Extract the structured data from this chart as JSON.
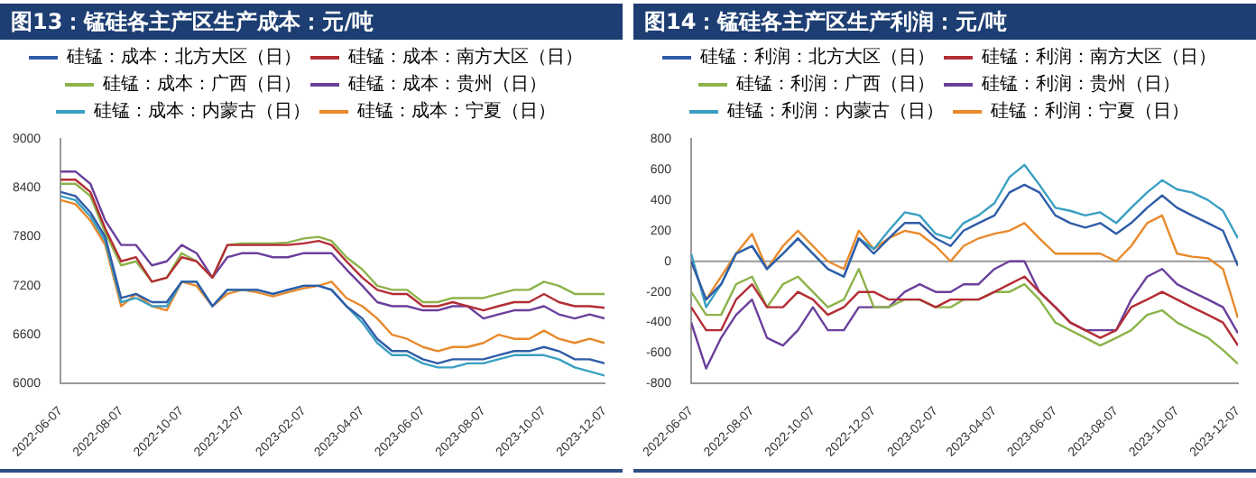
{
  "chart_data": [
    {
      "type": "line",
      "title": "图13：锰硅各主产区生产成本：元/吨",
      "x": [
        "2022-06-07",
        "2022-06-22",
        "2022-07-07",
        "2022-07-22",
        "2022-08-07",
        "2022-08-22",
        "2022-09-07",
        "2022-09-22",
        "2022-10-07",
        "2022-10-22",
        "2022-11-07",
        "2022-11-22",
        "2022-12-07",
        "2022-12-22",
        "2023-01-07",
        "2023-01-22",
        "2023-02-07",
        "2023-02-22",
        "2023-03-07",
        "2023-03-22",
        "2023-04-07",
        "2023-04-22",
        "2023-05-07",
        "2023-05-22",
        "2023-06-07",
        "2023-06-22",
        "2023-07-07",
        "2023-07-22",
        "2023-08-07",
        "2023-08-22",
        "2023-09-07",
        "2023-09-22",
        "2023-10-07",
        "2023-10-22",
        "2023-11-07",
        "2023-11-22",
        "2023-12-07"
      ],
      "series": [
        {
          "name": "硅锰：成本：北方大区（日）",
          "color": "#2f5ca8",
          "values": [
            8350,
            8300,
            8100,
            7800,
            7050,
            7100,
            7000,
            7000,
            7250,
            7250,
            6950,
            7150,
            7150,
            7150,
            7100,
            7150,
            7200,
            7200,
            7150,
            6950,
            6800,
            6550,
            6400,
            6400,
            6300,
            6250,
            6300,
            6300,
            6300,
            6350,
            6400,
            6400,
            6450,
            6400,
            6300,
            6300,
            6250
          ]
        },
        {
          "name": "硅锰：成本：南方大区（日）",
          "color": "#b32d35",
          "values": [
            8500,
            8500,
            8350,
            7900,
            7500,
            7550,
            7250,
            7300,
            7550,
            7500,
            7300,
            7700,
            7700,
            7700,
            7700,
            7700,
            7720,
            7750,
            7700,
            7500,
            7300,
            7150,
            7100,
            7100,
            6950,
            6950,
            7000,
            6950,
            6900,
            6950,
            7000,
            7000,
            7100,
            7000,
            6950,
            6950,
            6930
          ]
        },
        {
          "name": "硅锰：成本：广西（日）",
          "color": "#8db34a",
          "values": [
            8450,
            8450,
            8300,
            7850,
            7450,
            7500,
            7250,
            7300,
            7600,
            7500,
            7300,
            7700,
            7720,
            7720,
            7720,
            7730,
            7780,
            7800,
            7750,
            7550,
            7400,
            7200,
            7150,
            7150,
            7000,
            7000,
            7050,
            7050,
            7050,
            7100,
            7150,
            7150,
            7250,
            7200,
            7100,
            7100,
            7100
          ]
        },
        {
          "name": "硅锰：成本：贵州（日）",
          "color": "#6b3f9b",
          "values": [
            8600,
            8600,
            8450,
            8000,
            7700,
            7700,
            7450,
            7500,
            7700,
            7600,
            7300,
            7550,
            7600,
            7600,
            7550,
            7550,
            7600,
            7600,
            7600,
            7400,
            7200,
            7000,
            6950,
            6950,
            6900,
            6900,
            6950,
            6950,
            6800,
            6850,
            6900,
            6900,
            6950,
            6850,
            6800,
            6850,
            6800
          ]
        },
        {
          "name": "硅锰：成本：内蒙古（日）",
          "color": "#3a9fc2",
          "values": [
            8300,
            8250,
            8050,
            7750,
            7000,
            7050,
            6950,
            6950,
            7250,
            7250,
            6950,
            7150,
            7150,
            7150,
            7100,
            7150,
            7200,
            7200,
            7150,
            6950,
            6750,
            6500,
            6350,
            6350,
            6250,
            6200,
            6200,
            6250,
            6250,
            6300,
            6350,
            6350,
            6350,
            6300,
            6200,
            6150,
            6100
          ]
        },
        {
          "name": "硅锰：成本：宁夏（日）",
          "color": "#e8892b",
          "values": [
            8250,
            8200,
            8000,
            7700,
            6950,
            7100,
            6950,
            6900,
            7250,
            7200,
            6950,
            7100,
            7150,
            7120,
            7070,
            7120,
            7170,
            7200,
            7250,
            7050,
            6950,
            6800,
            6600,
            6550,
            6450,
            6400,
            6450,
            6450,
            6500,
            6600,
            6550,
            6550,
            6650,
            6550,
            6500,
            6550,
            6500
          ]
        }
      ],
      "xlim": [
        "2022-06-07",
        "2023-12-07"
      ],
      "xticks": [
        "2022-06-07",
        "2022-08-07",
        "2022-10-07",
        "2022-12-07",
        "2023-02-07",
        "2023-04-07",
        "2023-06-07",
        "2023-08-07",
        "2023-10-07",
        "2023-12-07"
      ],
      "ylim": [
        6000,
        9000
      ],
      "yticks": [
        6000,
        6600,
        7200,
        7800,
        8400,
        9000
      ],
      "legend": "top",
      "marker": "none",
      "line_style": "solid"
    },
    {
      "type": "line",
      "title": "图14：锰硅各主产区生产利润：元/吨",
      "x": [
        "2022-06-07",
        "2022-06-22",
        "2022-07-07",
        "2022-07-22",
        "2022-08-07",
        "2022-08-22",
        "2022-09-07",
        "2022-09-22",
        "2022-10-07",
        "2022-10-22",
        "2022-11-07",
        "2022-11-22",
        "2022-12-07",
        "2022-12-22",
        "2023-01-07",
        "2023-01-22",
        "2023-02-07",
        "2023-02-22",
        "2023-03-07",
        "2023-03-22",
        "2023-04-07",
        "2023-04-22",
        "2023-05-07",
        "2023-05-22",
        "2023-06-07",
        "2023-06-22",
        "2023-07-07",
        "2023-07-22",
        "2023-08-07",
        "2023-08-22",
        "2023-09-07",
        "2023-09-22",
        "2023-10-07",
        "2023-10-22",
        "2023-11-07",
        "2023-11-22",
        "2023-12-07"
      ],
      "series": [
        {
          "name": "硅锰：利润：北方大区（日）",
          "color": "#2f5ca8",
          "values": [
            0,
            -250,
            -150,
            50,
            100,
            -50,
            50,
            150,
            50,
            -50,
            -100,
            150,
            50,
            150,
            250,
            250,
            150,
            100,
            200,
            250,
            300,
            450,
            500,
            450,
            300,
            250,
            220,
            250,
            180,
            250,
            350,
            430,
            350,
            300,
            250,
            200,
            -30
          ]
        },
        {
          "name": "硅锰：利润：南方大区（日）",
          "color": "#b32d35",
          "values": [
            -300,
            -450,
            -450,
            -250,
            -150,
            -300,
            -300,
            -200,
            -250,
            -350,
            -300,
            -200,
            -200,
            -250,
            -250,
            -250,
            -300,
            -250,
            -250,
            -250,
            -200,
            -150,
            -100,
            -200,
            -300,
            -400,
            -450,
            -500,
            -450,
            -300,
            -250,
            -200,
            -250,
            -300,
            -350,
            -400,
            -550
          ]
        },
        {
          "name": "硅锰：利润：广西（日）",
          "color": "#8db34a",
          "values": [
            -200,
            -350,
            -350,
            -150,
            -100,
            -300,
            -150,
            -100,
            -200,
            -300,
            -250,
            -50,
            -300,
            -300,
            -250,
            -250,
            -300,
            -300,
            -250,
            -250,
            -200,
            -200,
            -150,
            -250,
            -400,
            -450,
            -500,
            -550,
            -500,
            -450,
            -350,
            -320,
            -400,
            -450,
            -500,
            -580,
            -670
          ]
        },
        {
          "name": "硅锰：利润：贵州（日）",
          "color": "#6b3f9b",
          "values": [
            -400,
            -700,
            -500,
            -350,
            -250,
            -500,
            -550,
            -450,
            -300,
            -450,
            -450,
            -300,
            -300,
            -300,
            -200,
            -150,
            -200,
            -200,
            -150,
            -150,
            -50,
            0,
            0,
            -200,
            -300,
            -400,
            -450,
            -450,
            -450,
            -250,
            -100,
            -50,
            -150,
            -200,
            -250,
            -300,
            -470
          ]
        },
        {
          "name": "硅锰：利润：内蒙古（日）",
          "color": "#3a9fc2",
          "values": [
            50,
            -300,
            -150,
            50,
            100,
            -50,
            50,
            150,
            50,
            -50,
            -100,
            150,
            80,
            200,
            320,
            300,
            180,
            150,
            250,
            300,
            380,
            550,
            630,
            500,
            350,
            330,
            300,
            320,
            250,
            350,
            450,
            530,
            470,
            450,
            400,
            330,
            150
          ]
        },
        {
          "name": "硅锰：利润：宁夏（日）",
          "color": "#e8892b",
          "values": [
            0,
            -250,
            -100,
            50,
            180,
            -50,
            100,
            200,
            100,
            0,
            -50,
            200,
            80,
            150,
            200,
            180,
            100,
            0,
            100,
            150,
            180,
            200,
            250,
            150,
            50,
            50,
            50,
            50,
            0,
            100,
            250,
            300,
            50,
            30,
            20,
            -50,
            -370
          ]
        }
      ],
      "xlim": [
        "2022-06-07",
        "2023-12-07"
      ],
      "xticks": [
        "2022-06-07",
        "2022-08-07",
        "2022-10-07",
        "2022-12-07",
        "2023-02-07",
        "2023-04-07",
        "2023-06-07",
        "2023-08-07",
        "2023-10-07",
        "2023-12-07"
      ],
      "ylim": [
        -800,
        800
      ],
      "yticks": [
        -800,
        -600,
        -400,
        -200,
        0,
        200,
        400,
        600,
        800
      ],
      "legend": "top",
      "marker": "none",
      "line_style": "solid",
      "ref_lines": [
        {
          "axis": "y",
          "value": 0,
          "color": "#999999"
        }
      ]
    }
  ]
}
